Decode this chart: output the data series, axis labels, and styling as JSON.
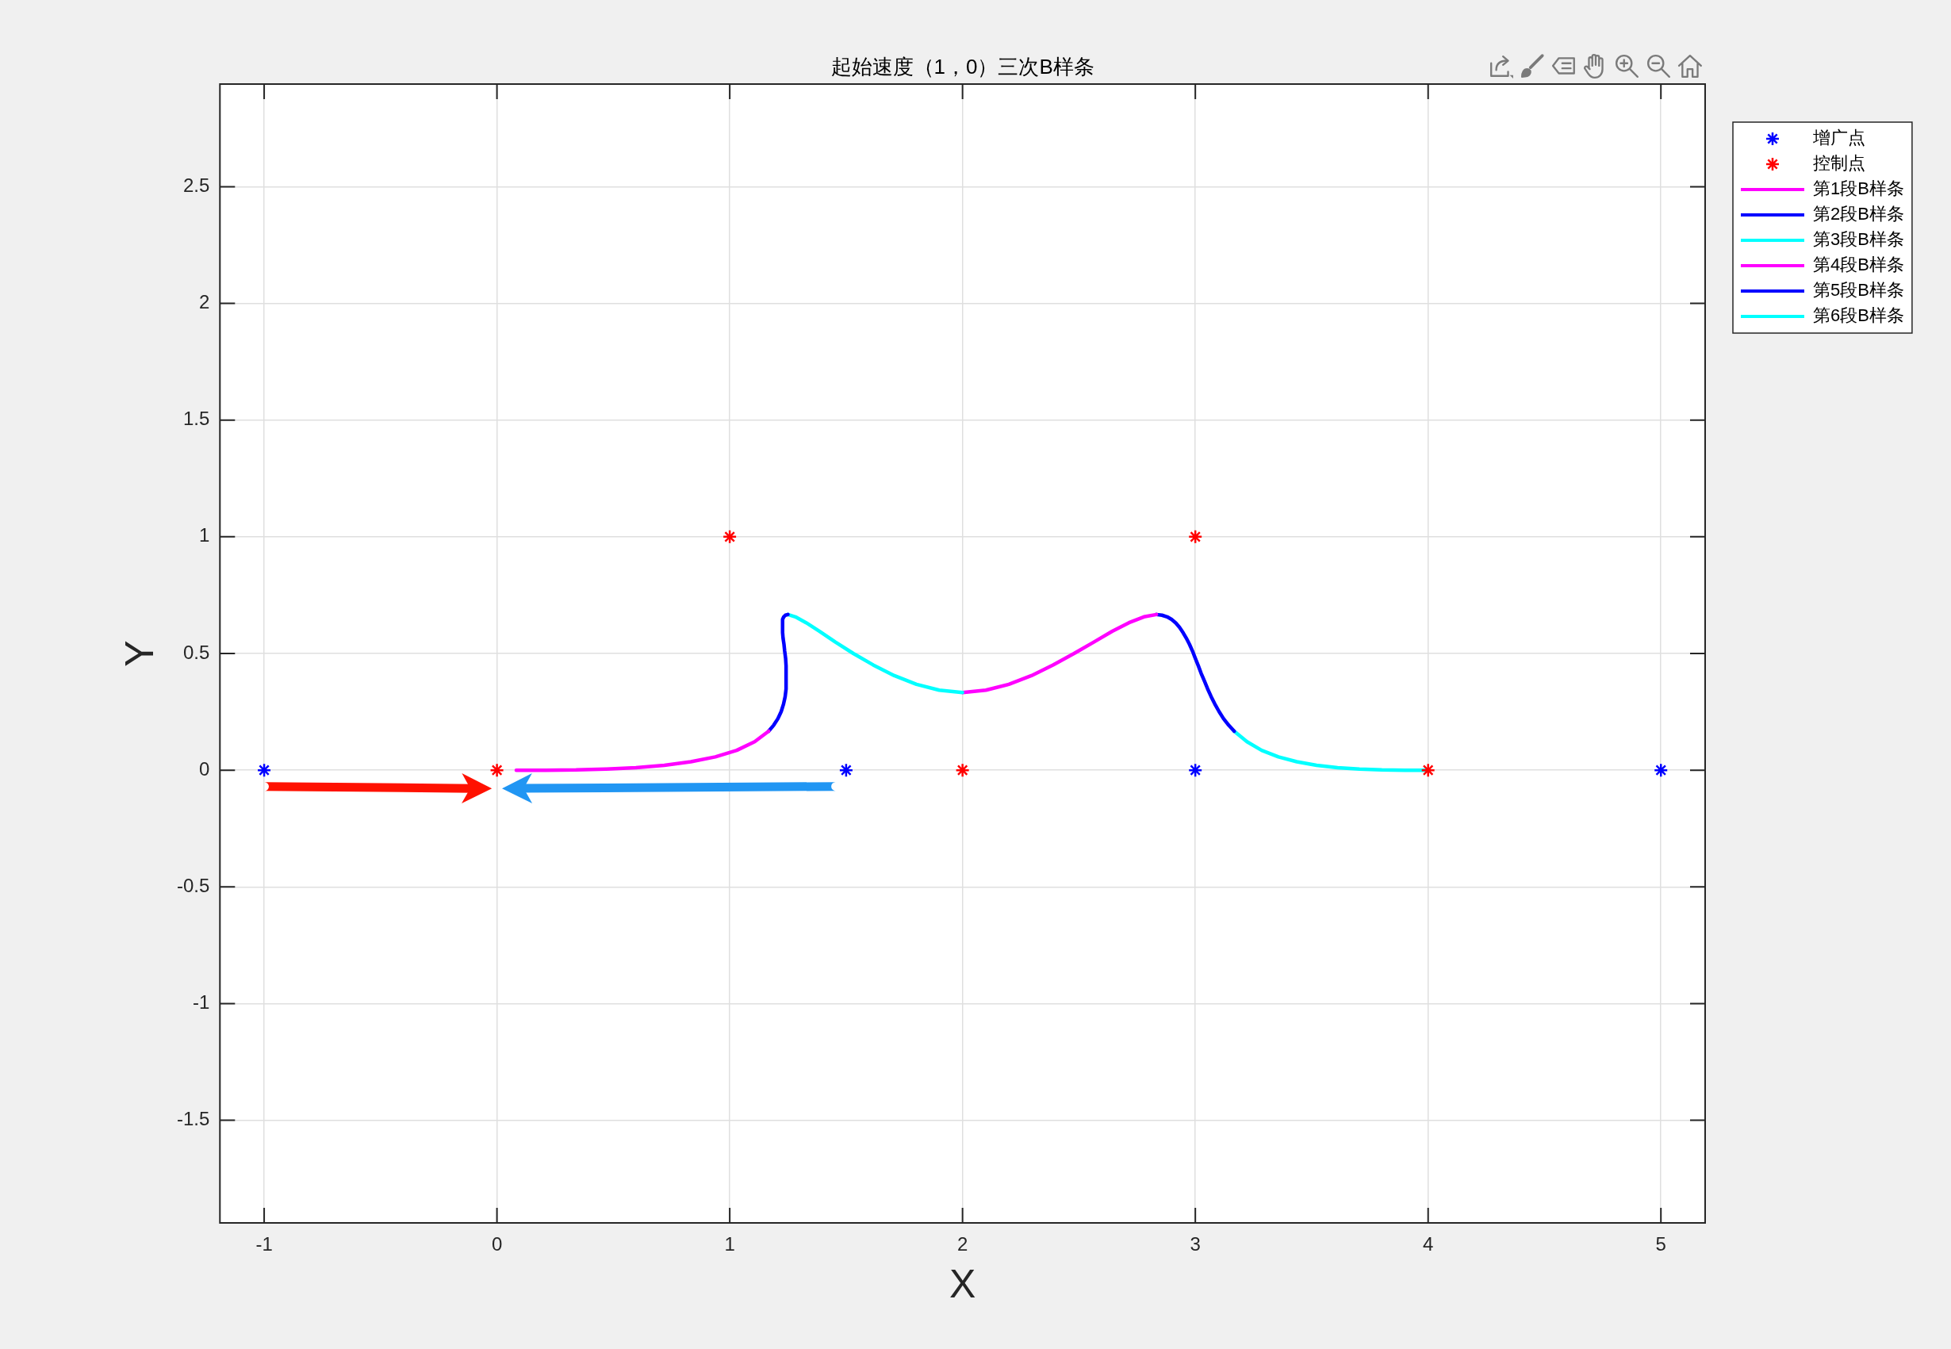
{
  "chart_data": {
    "type": "line",
    "title": "起始速度（1，0）三次B样条",
    "xlabel": "X",
    "ylabel": "Y",
    "xlim": [
      -1.19,
      5.19
    ],
    "ylim": [
      -1.94,
      2.94
    ],
    "xticks": [
      -1,
      0,
      1,
      2,
      3,
      4,
      5
    ],
    "yticks": [
      -1.5,
      -1,
      -0.5,
      0,
      0.5,
      1,
      1.5,
      2,
      2.5
    ],
    "grid": true,
    "legend": "top right",
    "series": [
      {
        "name": "增广点",
        "type": "scatter",
        "marker": "cross",
        "color": "#0000ff",
        "x": [
          -1,
          1.5,
          3,
          5
        ],
        "values": [
          0,
          0,
          0,
          0
        ]
      },
      {
        "name": "控制点",
        "type": "scatter",
        "marker": "cross",
        "color": "#ff0000",
        "x": [
          0,
          1,
          2,
          3,
          4
        ],
        "values": [
          0,
          1,
          0,
          1,
          0
        ]
      },
      {
        "name": "第1段B样条",
        "color": "#ff00ff",
        "x": [
          0.083,
          0.21,
          0.34,
          0.47,
          0.597,
          0.719,
          0.833,
          0.938,
          1.03,
          1.107,
          1.167
        ],
        "values": [
          0,
          0,
          0.001,
          0.005,
          0.011,
          0.021,
          0.036,
          0.057,
          0.085,
          0.122,
          0.167
        ]
      },
      {
        "name": "第2段B样条",
        "color": "#0000ff",
        "x": [
          1.167,
          1.189,
          1.207,
          1.221,
          1.231,
          1.238,
          1.242,
          1.242,
          1.24,
          1.236,
          1.233,
          1.229,
          1.227,
          1.227,
          1.232,
          1.239,
          1.25
        ],
        "values": [
          0.167,
          0.193,
          0.221,
          0.251,
          0.283,
          0.315,
          0.348,
          0.447,
          0.479,
          0.51,
          0.539,
          0.566,
          0.59,
          0.646,
          0.657,
          0.664,
          0.667
        ]
      },
      {
        "name": "第3段B样条",
        "color": "#00ffff",
        "x": [
          1.25,
          1.282,
          1.328,
          1.386,
          1.454,
          1.531,
          1.616,
          1.707,
          1.802,
          1.9,
          2
        ],
        "values": [
          0.667,
          0.657,
          0.632,
          0.595,
          0.549,
          0.5,
          0.451,
          0.405,
          0.368,
          0.343,
          0.333
        ]
      },
      {
        "name": "第4段B样条",
        "color": "#ff00ff",
        "x": [
          2,
          2.1,
          2.199,
          2.296,
          2.389,
          2.479,
          2.564,
          2.643,
          2.715,
          2.779,
          2.833
        ],
        "values": [
          0.333,
          0.343,
          0.368,
          0.405,
          0.451,
          0.5,
          0.549,
          0.595,
          0.632,
          0.657,
          0.667
        ]
      },
      {
        "name": "第5段B样条",
        "color": "#0000ff",
        "x": [
          2.833,
          2.857,
          2.879,
          2.898,
          2.916,
          2.932,
          2.947,
          2.961,
          2.975,
          2.988,
          3,
          3.013,
          3.025,
          3.039,
          3.053,
          3.068,
          3.084,
          3.102,
          3.121,
          3.143,
          3.167
        ],
        "values": [
          0.667,
          0.664,
          0.657,
          0.646,
          0.631,
          0.612,
          0.59,
          0.566,
          0.539,
          0.51,
          0.479,
          0.447,
          0.415,
          0.382,
          0.348,
          0.315,
          0.283,
          0.251,
          0.221,
          0.193,
          0.167
        ]
      },
      {
        "name": "第6段B样条",
        "color": "#00ffff",
        "x": [
          3.167,
          3.222,
          3.285,
          3.357,
          3.436,
          3.521,
          3.611,
          3.705,
          3.801,
          3.9,
          4
        ],
        "values": [
          0.167,
          0.122,
          0.085,
          0.057,
          0.036,
          0.021,
          0.011,
          0.005,
          0.001,
          0,
          0
        ]
      }
    ]
  }
}
